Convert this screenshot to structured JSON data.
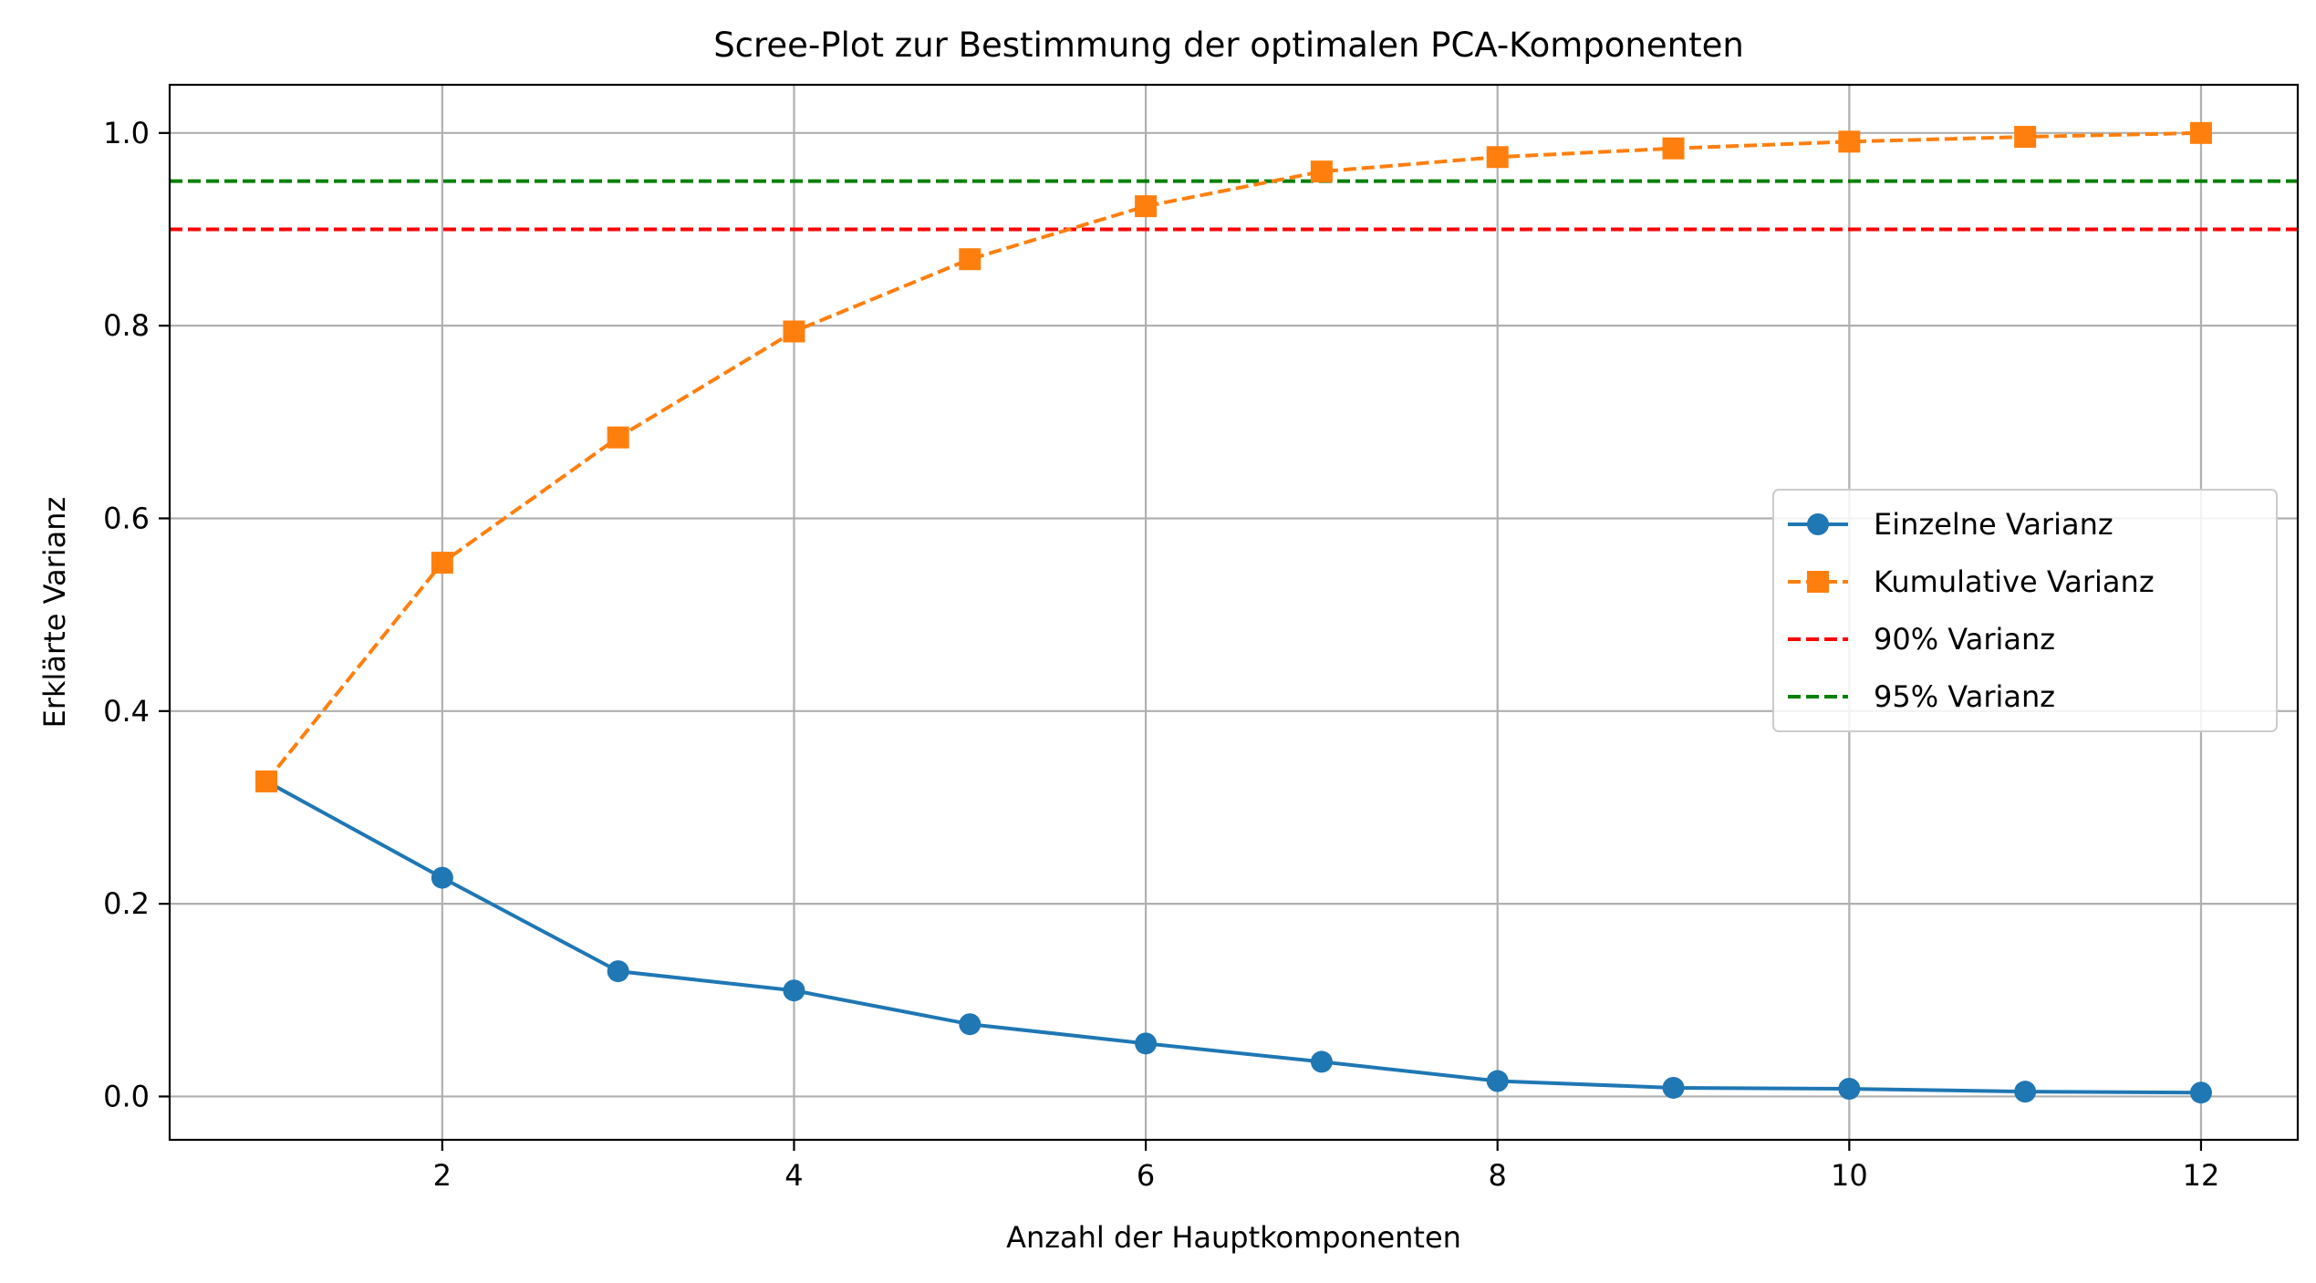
{
  "chart_data": {
    "type": "line",
    "title": "Scree-Plot zur Bestimmung der optimalen PCA-Komponenten",
    "xlabel": "Anzahl der Hauptkomponenten",
    "ylabel": "Erklärte Varianz",
    "xlim": [
      0.45,
      12.55
    ],
    "ylim": [
      -0.045,
      1.05
    ],
    "x_ticks": [
      2,
      4,
      6,
      8,
      10,
      12
    ],
    "x_tick_labels": [
      "2",
      "4",
      "6",
      "8",
      "10",
      "12"
    ],
    "y_ticks": [
      0.0,
      0.2,
      0.4,
      0.6,
      0.8,
      1.0
    ],
    "y_tick_labels": [
      "0.0",
      "0.2",
      "0.4",
      "0.6",
      "0.8",
      "1.0"
    ],
    "grid": true,
    "legend_position": "center-right",
    "x": [
      1,
      2,
      3,
      4,
      5,
      6,
      7,
      8,
      9,
      10,
      11,
      12
    ],
    "series": [
      {
        "name": "Einzelne Varianz",
        "values": [
          0.327,
          0.227,
          0.13,
          0.11,
          0.075,
          0.055,
          0.036,
          0.016,
          0.009,
          0.008,
          0.005,
          0.004
        ],
        "color": "#1f77b4",
        "line_style": "solid",
        "marker": "circle"
      },
      {
        "name": "Kumulative Varianz",
        "values": [
          0.327,
          0.554,
          0.684,
          0.794,
          0.869,
          0.924,
          0.96,
          0.975,
          0.984,
          0.991,
          0.996,
          1.0
        ],
        "color": "#ff7f0e",
        "line_style": "dashed",
        "marker": "square"
      }
    ],
    "reference_lines": [
      {
        "name": "90% Varianz",
        "y": 0.9,
        "color": "#ff0000",
        "line_style": "dashed"
      },
      {
        "name": "95% Varianz",
        "y": 0.95,
        "color": "#008000",
        "line_style": "dashed"
      }
    ]
  }
}
